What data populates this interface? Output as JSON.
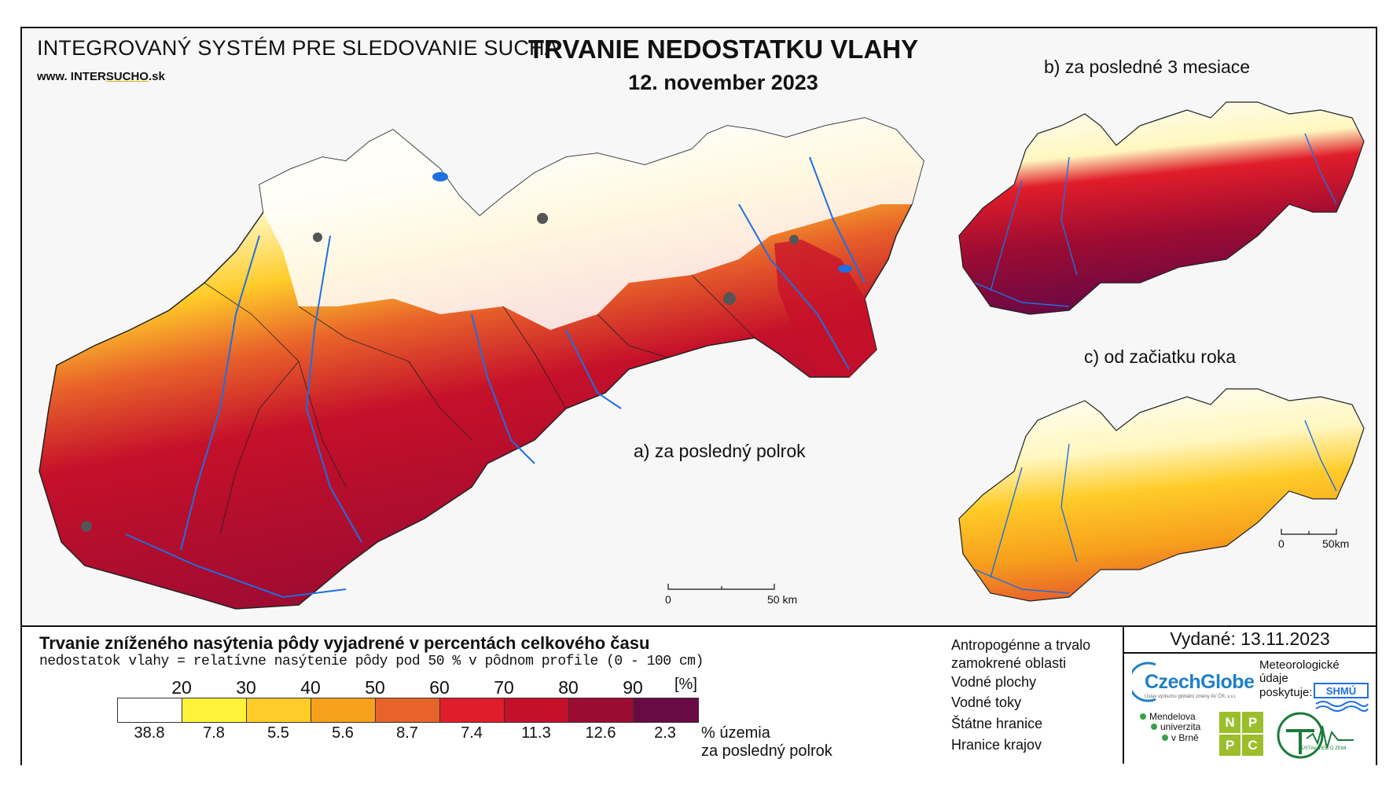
{
  "header": {
    "system_name": "INTEGROVANÝ SYSTÉM PRE SLEDOVANIE SUCHA",
    "url_prefix": "www. INTER",
    "url_highlight": "SUCHO",
    "url_suffix": ".sk",
    "title": "TRVANIE NEDOSTATKU VLAHY",
    "date": "12. november 2023"
  },
  "panels": {
    "a_label": "a) za posledný polrok",
    "b_label": "b) za posledné 3 mesiace",
    "c_label": "c) od začiatku roka"
  },
  "scalebar_main": {
    "start": "0",
    "end": "50 km"
  },
  "scalebar_small": {
    "start": "0",
    "end": "50km"
  },
  "legend": {
    "title": "Trvanie zníženého nasýtenia pôdy vyjadrené v percentách celkového času",
    "subtitle": "nedostatok vlahy = relatívne nasýtenie pôdy pod 50 % v pôdnom profile (0 - 100 cm)",
    "thresholds": [
      "20",
      "30",
      "40",
      "50",
      "60",
      "70",
      "80",
      "90"
    ],
    "unit": "[%]",
    "classes": [
      {
        "color": "#ffffff",
        "share": "38.8"
      },
      {
        "color": "#fff33a",
        "share": "7.8"
      },
      {
        "color": "#ffcc29",
        "share": "5.5"
      },
      {
        "color": "#f7a01c",
        "share": "5.6"
      },
      {
        "color": "#e8632a",
        "share": "8.7"
      },
      {
        "color": "#e01d2a",
        "share": "7.4"
      },
      {
        "color": "#c5102a",
        "share": "11.3"
      },
      {
        "color": "#9c0b32",
        "share": "12.6"
      },
      {
        "color": "#6a0a44",
        "share": "2.3"
      }
    ],
    "share_label_1": "% územia",
    "share_label_2": "za posledný polrok"
  },
  "symbols": {
    "anthropogenic_1": "Antropogénne a trvalo",
    "anthropogenic_2": "zamokrené oblasti",
    "water_bodies": "Vodné plochy",
    "rivers": "Vodné toky",
    "state_border": "Štátne hranice",
    "region_border": "Hranice krajov"
  },
  "issued": "Vydané: 13.11.2023",
  "logos": {
    "czechglobe": "CzechGlobe",
    "czechglobe_sub": "Ústav výzkumu globální změny AV ČR, v.v.i.",
    "meteo_1": "Meteorologické",
    "meteo_2": "údaje",
    "meteo_3": "poskytuje:",
    "shmu": "SHMÚ",
    "mendel_1": "Mendelova",
    "mendel_2": "univerzita",
    "mendel_3": "v Brně",
    "nppc": [
      "N",
      "P",
      "P",
      "C"
    ],
    "uvz": "ÚSTAV VIED O ZEMI"
  },
  "colors": {
    "river": "#1f6fe0",
    "water": "#1f6fe0",
    "urban": "#555555",
    "border": "#222222"
  }
}
